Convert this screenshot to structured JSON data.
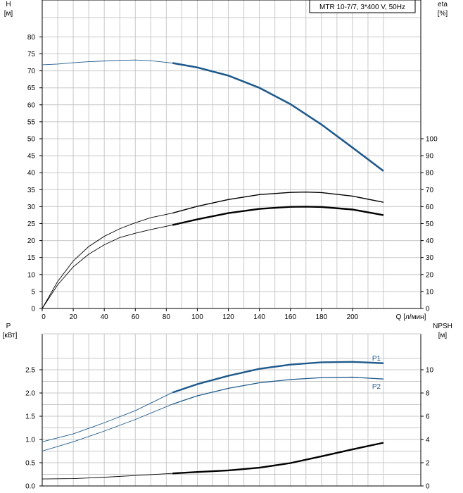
{
  "chart_data": [
    {
      "type": "line",
      "title": "MTR 10-7/7, 3*400 V, 50Hz",
      "xlabel": "Q [л/мин]",
      "ylabel_left_line1": "H",
      "ylabel_left_line2": "[м]",
      "ylabel_right_line1": "eta",
      "ylabel_right_line2": "[%]",
      "xlim": [
        0,
        220
      ],
      "ylim_left": [
        0,
        85
      ],
      "ylim_right": [
        0,
        170
      ],
      "x_ticks": [
        0,
        20,
        40,
        60,
        80,
        100,
        120,
        140,
        160,
        180,
        200
      ],
      "x_tick_labels": [
        "0",
        "20",
        "40",
        "60",
        "80",
        "100",
        "120",
        "140",
        "160",
        "180",
        "200"
      ],
      "y_left_ticks": [
        0,
        5,
        10,
        15,
        20,
        25,
        30,
        35,
        40,
        45,
        50,
        55,
        60,
        65,
        70,
        75,
        80
      ],
      "y_left_tick_labels": [
        "0",
        "5",
        "10",
        "15",
        "20",
        "25",
        "30",
        "35",
        "40",
        "45",
        "50",
        "55",
        "60",
        "65",
        "70",
        "75",
        "80"
      ],
      "y_right_ticks": [
        0,
        10,
        20,
        30,
        40,
        50,
        60,
        70,
        80,
        90,
        100
      ],
      "y_right_tick_labels": [
        "0",
        "10",
        "20",
        "30",
        "40",
        "50",
        "60",
        "70",
        "80",
        "90",
        "100"
      ],
      "grid": true,
      "series": [
        {
          "axis": "left",
          "color": "#1f5a8c",
          "thin_points": [
            [
              0,
              71.8
            ],
            [
              10,
              72.0
            ],
            [
              20,
              72.4
            ],
            [
              30,
              72.7
            ],
            [
              40,
              72.9
            ],
            [
              50,
              73.1
            ],
            [
              60,
              73.2
            ],
            [
              70,
              73.0
            ],
            [
              84,
              72.3
            ]
          ],
          "bold_points": [
            [
              84,
              72.3
            ],
            [
              100,
              71.0
            ],
            [
              120,
              68.6
            ],
            [
              140,
              65.0
            ],
            [
              160,
              60.2
            ],
            [
              180,
              54.2
            ],
            [
              200,
              47.4
            ],
            [
              220,
              40.5
            ]
          ]
        },
        {
          "axis": "right",
          "color": "#000000",
          "thin_points": [
            [
              0,
              0
            ],
            [
              10,
              16
            ],
            [
              20,
              28
            ],
            [
              30,
              36.5
            ],
            [
              40,
              42.5
            ],
            [
              50,
              47
            ],
            [
              60,
              50.5
            ],
            [
              70,
              53.5
            ],
            [
              84,
              56.2
            ]
          ],
          "bold_points": [
            [
              84,
              56.2
            ],
            [
              100,
              60.2
            ],
            [
              120,
              64.2
            ],
            [
              140,
              67.1
            ],
            [
              160,
              68.4
            ],
            [
              170,
              68.6
            ],
            [
              180,
              68.3
            ],
            [
              200,
              66.2
            ],
            [
              220,
              62.6
            ]
          ]
        },
        {
          "axis": "right",
          "color": "#000000",
          "thin_points": [
            [
              0,
              0
            ],
            [
              10,
              14
            ],
            [
              20,
              24.5
            ],
            [
              30,
              32
            ],
            [
              40,
              37.5
            ],
            [
              50,
              41.8
            ],
            [
              60,
              44.3
            ],
            [
              70,
              46.5
            ],
            [
              84,
              49.2
            ]
          ],
          "bold_points": [
            [
              84,
              49.2
            ],
            [
              100,
              52.5
            ],
            [
              120,
              56.2
            ],
            [
              140,
              58.7
            ],
            [
              160,
              59.9
            ],
            [
              170,
              60.0
            ],
            [
              180,
              59.8
            ],
            [
              200,
              58.3
            ],
            [
              220,
              55
            ]
          ]
        }
      ]
    },
    {
      "type": "line",
      "xlim": [
        0,
        220
      ],
      "ylim_left": [
        0,
        3.05
      ],
      "ylim_right": [
        0,
        12.2
      ],
      "ylabel_left_line1": "P",
      "ylabel_left_line2": "[кВт]",
      "ylabel_right_line1": "NPSH",
      "ylabel_right_line2": "[м]",
      "y_left_ticks": [
        0,
        0.5,
        1.0,
        1.5,
        2.0,
        2.5
      ],
      "y_left_tick_labels": [
        "0.0",
        "0.5",
        "1.0",
        "1.5",
        "2.0",
        "2.5"
      ],
      "y_right_ticks": [
        0,
        2,
        4,
        6,
        8,
        10
      ],
      "y_right_tick_labels": [
        "0",
        "2",
        "4",
        "6",
        "8",
        "10"
      ],
      "grid": true,
      "series": [
        {
          "name": "P1",
          "axis": "left",
          "color": "#1f5a8c",
          "thin_points": [
            [
              0,
              0.95
            ],
            [
              20,
              1.12
            ],
            [
              40,
              1.36
            ],
            [
              60,
              1.62
            ],
            [
              84,
              2.01
            ]
          ],
          "bold_points": [
            [
              84,
              2.01
            ],
            [
              100,
              2.19
            ],
            [
              120,
              2.37
            ],
            [
              140,
              2.52
            ],
            [
              160,
              2.61
            ],
            [
              180,
              2.66
            ],
            [
              200,
              2.67
            ],
            [
              220,
              2.64
            ]
          ]
        },
        {
          "name": "P2",
          "axis": "left",
          "color": "#1f5a8c",
          "thin_points": [
            [
              0,
              0.75
            ],
            [
              20,
              0.95
            ],
            [
              40,
              1.18
            ],
            [
              60,
              1.43
            ],
            [
              84,
              1.76
            ]
          ],
          "bold_points": [
            [
              84,
              1.76
            ],
            [
              100,
              1.94
            ],
            [
              120,
              2.1
            ],
            [
              140,
              2.22
            ],
            [
              160,
              2.29
            ],
            [
              180,
              2.33
            ],
            [
              200,
              2.34
            ],
            [
              220,
              2.3
            ]
          ]
        },
        {
          "axis": "right",
          "color": "#000000",
          "thin_points": [
            [
              0,
              0.6
            ],
            [
              20,
              0.63
            ],
            [
              40,
              0.75
            ],
            [
              60,
              0.9
            ],
            [
              84,
              1.08
            ]
          ],
          "bold_points": [
            [
              84,
              1.08
            ],
            [
              100,
              1.2
            ],
            [
              120,
              1.34
            ],
            [
              140,
              1.57
            ],
            [
              160,
              1.97
            ],
            [
              180,
              2.55
            ],
            [
              200,
              3.15
            ],
            [
              220,
              3.72
            ]
          ]
        }
      ]
    }
  ]
}
